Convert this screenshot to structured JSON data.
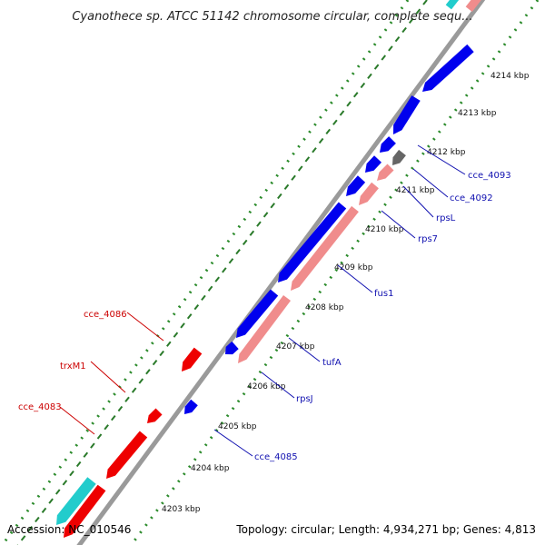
{
  "title": "Cyanothece sp. ATCC 51142 chromosome circular, complete sequ...",
  "footer": {
    "accession": "Accession: NC_010546",
    "topology": "Topology: circular; Length: 4,934,271 bp; Genes: 4,813"
  },
  "ticks": [
    "4203 kbp",
    "4204 kbp",
    "4205 kbp",
    "4206 kbp",
    "4207 kbp",
    "4208 kbp",
    "4209 kbp",
    "4210 kbp",
    "4211 kbp",
    "4212 kbp",
    "4213 kbp",
    "4214 kbp"
  ],
  "gene_labels_left": [
    "cce_4086",
    "trxM1",
    "cce_4083"
  ],
  "gene_labels_right": [
    "cce_4093",
    "cce_4092",
    "rpsL",
    "rps7",
    "fus1",
    "tufA",
    "rpsJ",
    "cce_4085"
  ],
  "colors": {
    "forward_gene": "#0000ee",
    "reverse_gene": "#ee0000",
    "rrna": "#f08c8c",
    "other": "#666666",
    "cyan_gene": "#22cccc",
    "ruler": "#999999",
    "dots": "#2a8a2a",
    "left_label": "#cc0000",
    "right_label": "#1010b0"
  }
}
